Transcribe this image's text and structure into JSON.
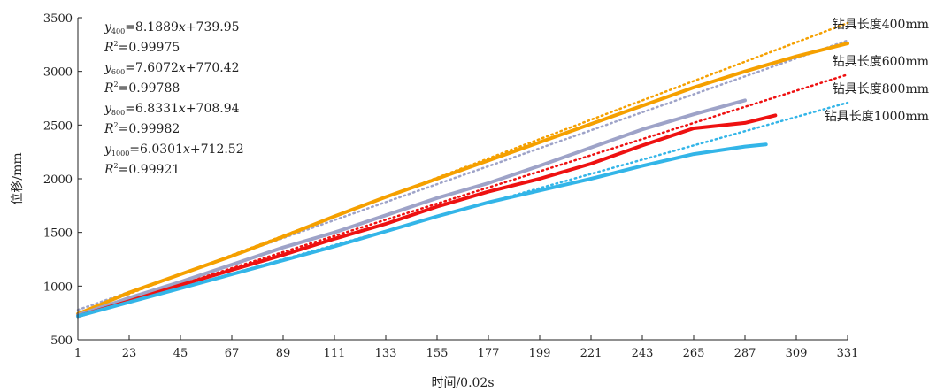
{
  "chart_data": {
    "type": "line",
    "xlabel": "时间/0.02s",
    "ylabel": "位移/mm",
    "xlim": [
      1,
      331
    ],
    "ylim": [
      500,
      3500
    ],
    "xticks": [
      1,
      23,
      45,
      67,
      89,
      111,
      133,
      155,
      177,
      199,
      221,
      243,
      265,
      287,
      309,
      331
    ],
    "yticks": [
      500,
      1000,
      1500,
      2000,
      2500,
      3000,
      3500
    ],
    "grid": false,
    "series": [
      {
        "name": "钻具长度400mm",
        "color": "#f5a000",
        "x": [
          1,
          23,
          45,
          67,
          89,
          111,
          133,
          155,
          177,
          199,
          221,
          243,
          265,
          287,
          309,
          331
        ],
        "y": [
          740,
          940,
          1110,
          1280,
          1460,
          1650,
          1830,
          2000,
          2170,
          2340,
          2510,
          2680,
          2850,
          3000,
          3140,
          3260
        ],
        "fit": {
          "slope": 8.1889,
          "intercept": 739.95,
          "x_end": 331
        }
      },
      {
        "name": "钻具长度600mm",
        "color": "#9ea3c8",
        "x": [
          1,
          23,
          45,
          67,
          89,
          111,
          133,
          155,
          177,
          199,
          221,
          243,
          265,
          287
        ],
        "y": [
          730,
          890,
          1040,
          1200,
          1360,
          1500,
          1660,
          1820,
          1960,
          2120,
          2290,
          2460,
          2600,
          2730
        ],
        "fit": {
          "slope": 7.6072,
          "intercept": 770.42,
          "x_end": 331
        }
      },
      {
        "name": "钻具长度800mm",
        "color": "#ee1111",
        "x": [
          1,
          23,
          45,
          67,
          89,
          111,
          133,
          155,
          177,
          199,
          221,
          243,
          265,
          287,
          300
        ],
        "y": [
          720,
          860,
          1010,
          1150,
          1290,
          1440,
          1580,
          1740,
          1880,
          2000,
          2140,
          2310,
          2470,
          2520,
          2590
        ],
        "fit": {
          "slope": 6.8331,
          "intercept": 708.94,
          "x_end": 331
        }
      },
      {
        "name": "钻具长度1000mm",
        "color": "#33b5e8",
        "x": [
          1,
          23,
          45,
          67,
          89,
          111,
          133,
          155,
          177,
          199,
          221,
          243,
          265,
          287,
          296
        ],
        "y": [
          720,
          850,
          980,
          1110,
          1240,
          1370,
          1510,
          1650,
          1780,
          1890,
          2000,
          2120,
          2230,
          2300,
          2320
        ],
        "fit": {
          "slope": 6.0301,
          "intercept": 712.52,
          "x_end": 331
        }
      }
    ],
    "equations": [
      {
        "y_main": "y",
        "y_sub": "400",
        "rhs": "=8.1889",
        "xvar": "x",
        "tail": "+739.95",
        "r_main": "R",
        "r_sup": "2",
        "r_val": "=0.99975"
      },
      {
        "y_main": "y",
        "y_sub": "600",
        "rhs": "=7.6072",
        "xvar": "x",
        "tail": "+770.42",
        "r_main": "R",
        "r_sup": "2",
        "r_val": "=0.99788"
      },
      {
        "y_main": "y",
        "y_sub": "800",
        "rhs": "=6.8331",
        "xvar": "x",
        "tail": "+708.94",
        "r_main": "R",
        "r_sup": "2",
        "r_val": "=0.99982"
      },
      {
        "y_main": "y",
        "y_sub": "1000",
        "rhs": "=6.0301",
        "xvar": "x",
        "tail": "+712.52",
        "r_main": "R",
        "r_sup": "2",
        "r_val": "=0.99921"
      }
    ]
  }
}
